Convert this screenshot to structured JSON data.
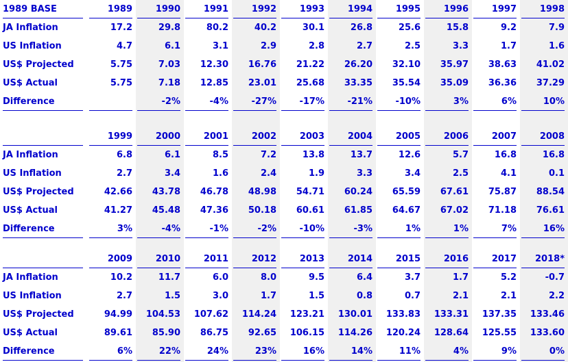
{
  "row_labels": [
    "JA Inflation",
    "US Inflation",
    "US$ Projected",
    "US$ Actual",
    "Difference"
  ],
  "blocks": [
    {
      "corner": "1989 BASE",
      "years": [
        "1989",
        "1990",
        "1991",
        "1992",
        "1993",
        "1994",
        "1995",
        "1996",
        "1997",
        "1998"
      ],
      "rows": [
        [
          "17.2",
          "29.8",
          "80.2",
          "40.2",
          "30.1",
          "26.8",
          "25.6",
          "15.8",
          "9.2",
          "7.9"
        ],
        [
          "4.7",
          "6.1",
          "3.1",
          "2.9",
          "2.8",
          "2.7",
          "2.5",
          "3.3",
          "1.7",
          "1.6"
        ],
        [
          "5.75",
          "7.03",
          "12.30",
          "16.76",
          "21.22",
          "26.20",
          "32.10",
          "35.97",
          "38.63",
          "41.02"
        ],
        [
          "5.75",
          "7.18",
          "12.85",
          "23.01",
          "25.68",
          "33.35",
          "35.54",
          "35.09",
          "36.36",
          "37.29"
        ],
        [
          "",
          "-2%",
          "-4%",
          "-27%",
          "-17%",
          "-21%",
          "-10%",
          "3%",
          "6%",
          "10%"
        ]
      ]
    },
    {
      "corner": "",
      "years": [
        "1999",
        "2000",
        "2001",
        "2002",
        "2003",
        "2004",
        "2005",
        "2006",
        "2007",
        "2008"
      ],
      "rows": [
        [
          "6.8",
          "6.1",
          "8.5",
          "7.2",
          "13.8",
          "13.7",
          "12.6",
          "5.7",
          "16.8",
          "16.8"
        ],
        [
          "2.7",
          "3.4",
          "1.6",
          "2.4",
          "1.9",
          "3.3",
          "3.4",
          "2.5",
          "4.1",
          "0.1"
        ],
        [
          "42.66",
          "43.78",
          "46.78",
          "48.98",
          "54.71",
          "60.24",
          "65.59",
          "67.61",
          "75.87",
          "88.54"
        ],
        [
          "41.27",
          "45.48",
          "47.36",
          "50.18",
          "60.61",
          "61.85",
          "64.67",
          "67.02",
          "71.18",
          "76.61"
        ],
        [
          "3%",
          "-4%",
          "-1%",
          "-2%",
          "-10%",
          "-3%",
          "1%",
          "1%",
          "7%",
          "16%"
        ]
      ]
    },
    {
      "corner": "",
      "years": [
        "2009",
        "2010",
        "2011",
        "2012",
        "2013",
        "2014",
        "2015",
        "2016",
        "2017",
        "2018*"
      ],
      "rows": [
        [
          "10.2",
          "11.7",
          "6.0",
          "8.0",
          "9.5",
          "6.4",
          "3.7",
          "1.7",
          "5.2",
          "-0.7"
        ],
        [
          "2.7",
          "1.5",
          "3.0",
          "1.7",
          "1.5",
          "0.8",
          "0.7",
          "2.1",
          "2.1",
          "2.2"
        ],
        [
          "94.99",
          "104.53",
          "107.62",
          "114.24",
          "123.21",
          "130.01",
          "133.83",
          "133.31",
          "137.35",
          "133.46"
        ],
        [
          "89.61",
          "85.90",
          "86.75",
          "92.65",
          "106.15",
          "114.26",
          "120.24",
          "128.64",
          "125.55",
          "133.60"
        ],
        [
          "6%",
          "22%",
          "24%",
          "23%",
          "16%",
          "14%",
          "11%",
          "4%",
          "9%",
          "0%"
        ]
      ]
    }
  ],
  "colors": {
    "text": "#0000cc",
    "rule": "#0000cc",
    "shade": "#f0f0f0",
    "background": "#ffffff"
  }
}
